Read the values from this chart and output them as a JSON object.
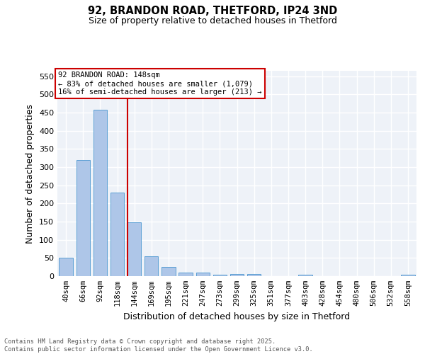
{
  "title_line1": "92, BRANDON ROAD, THETFORD, IP24 3ND",
  "title_line2": "Size of property relative to detached houses in Thetford",
  "xlabel": "Distribution of detached houses by size in Thetford",
  "ylabel": "Number of detached properties",
  "categories": [
    "40sqm",
    "66sqm",
    "92sqm",
    "118sqm",
    "144sqm",
    "169sqm",
    "195sqm",
    "221sqm",
    "247sqm",
    "273sqm",
    "299sqm",
    "325sqm",
    "351sqm",
    "377sqm",
    "403sqm",
    "428sqm",
    "454sqm",
    "480sqm",
    "506sqm",
    "532sqm",
    "558sqm"
  ],
  "values": [
    50,
    320,
    457,
    230,
    148,
    55,
    25,
    10,
    9,
    3,
    6,
    6,
    0,
    0,
    3,
    0,
    0,
    0,
    0,
    0,
    4
  ],
  "bar_color": "#aec6e8",
  "bar_edge_color": "#5a9fd4",
  "background_color": "#eef2f8",
  "grid_color": "#ffffff",
  "vline_x_idx": 4,
  "vline_color": "#cc0000",
  "annotation_text": "92 BRANDON ROAD: 148sqm\n← 83% of detached houses are smaller (1,079)\n16% of semi-detached houses are larger (213) →",
  "annotation_box_color": "#cc0000",
  "ylim": [
    0,
    565
  ],
  "yticks": [
    0,
    50,
    100,
    150,
    200,
    250,
    300,
    350,
    400,
    450,
    500,
    550
  ],
  "footer_text": "Contains HM Land Registry data © Crown copyright and database right 2025.\nContains public sector information licensed under the Open Government Licence v3.0.",
  "bar_width": 0.8
}
